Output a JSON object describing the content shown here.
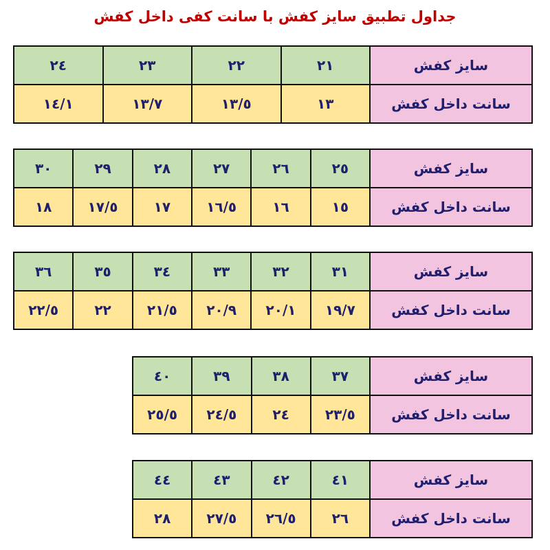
{
  "title": "جداول تطبیق سایز کفش با سانت کفی داخل کفش",
  "row_labels": {
    "size": "سایز کفش",
    "cm": "سانت داخل کفش"
  },
  "colors": {
    "title": "#c00000",
    "label_bg": "#f2c4e0",
    "size_bg": "#c6e0b4",
    "cm_bg": "#ffe699",
    "text": "#1f1f6e"
  },
  "tables": [
    {
      "sizes": [
        "٢١",
        "٢٢",
        "٢٣",
        "٢٤"
      ],
      "cms": [
        "١٣",
        "١٣/٥",
        "١٣/٧",
        "١٤/١"
      ]
    },
    {
      "sizes": [
        "٢٥",
        "٢٦",
        "٢٧",
        "٢٨",
        "٢٩",
        "٣٠"
      ],
      "cms": [
        "١٥",
        "١٦",
        "١٦/٥",
        "١٧",
        "١٧/٥",
        "١٨"
      ]
    },
    {
      "sizes": [
        "٣١",
        "٣٢",
        "٣٣",
        "٣٤",
        "٣٥",
        "٣٦"
      ],
      "cms": [
        "١٩/٧",
        "٢٠/١",
        "٢٠/٩",
        "٢١/٥",
        "٢٢",
        "٢٢/٥"
      ]
    },
    {
      "sizes": [
        "٣٧",
        "٣٨",
        "٣٩",
        "٤٠"
      ],
      "cms": [
        "٢٣/٥",
        "٢٤",
        "٢٤/٥",
        "٢٥/٥"
      ]
    },
    {
      "sizes": [
        "٤١",
        "٤٢",
        "٤٣",
        "٤٤"
      ],
      "cms": [
        "٢٦",
        "٢٦/٥",
        "٢٧/٥",
        "٢٨"
      ]
    }
  ]
}
